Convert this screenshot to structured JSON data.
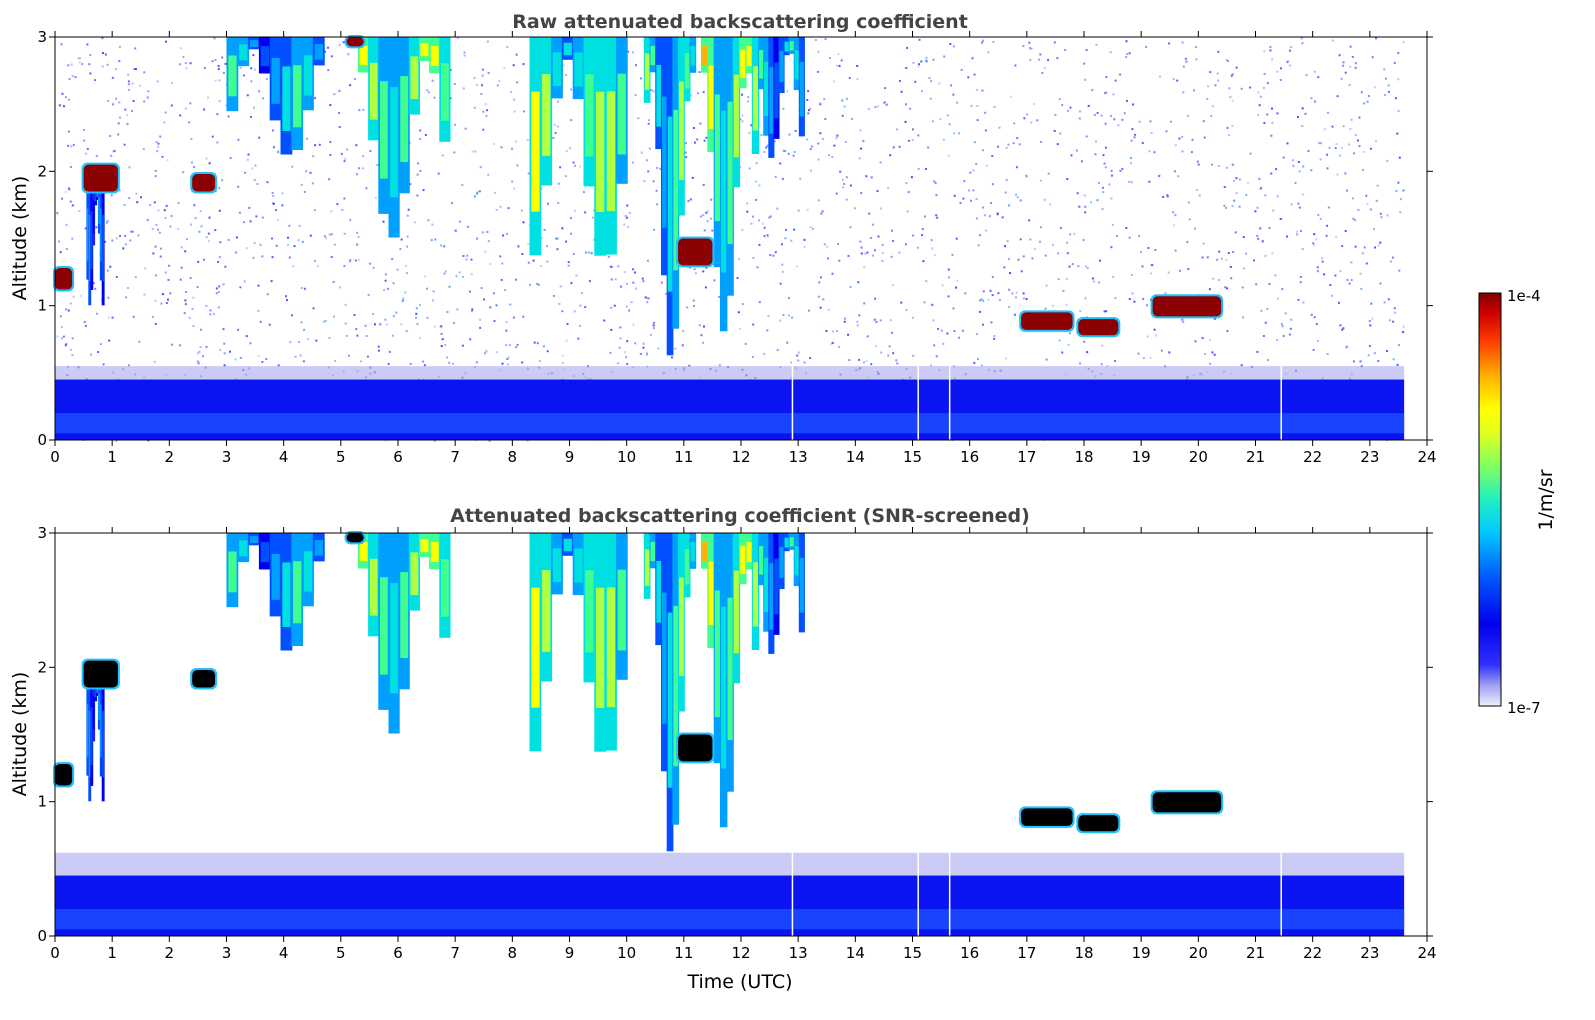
{
  "chart_data": [
    {
      "type": "heatmap",
      "title": "Raw attenuated backscattering coefficient",
      "xlabel": "",
      "ylabel": "Altitude (km)",
      "xlim": [
        0,
        24
      ],
      "ylim": [
        0,
        3
      ],
      "xticks": [
        "0",
        "1",
        "2",
        "3",
        "4",
        "5",
        "6",
        "7",
        "8",
        "9",
        "10",
        "11",
        "12",
        "13",
        "14",
        "15",
        "16",
        "17",
        "18",
        "19",
        "20",
        "21",
        "22",
        "23",
        "24"
      ],
      "yticks": [
        "0",
        "1",
        "2",
        "3"
      ],
      "data_end_hour": 23.6,
      "boundary_layer": {
        "top_km": 0.45,
        "level": 0.18
      },
      "features": [
        {
          "kind": "cirrus_streak",
          "x_start": 3.0,
          "x_end": 4.7,
          "top_km": 3.0,
          "bottom_km": 2.1,
          "level": 0.55
        },
        {
          "kind": "cirrus_streak",
          "x_start": 5.3,
          "x_end": 6.9,
          "top_km": 3.0,
          "bottom_km": 1.5,
          "level": 0.72
        },
        {
          "kind": "cirrus_streak",
          "x_start": 8.3,
          "x_end": 10.0,
          "top_km": 3.0,
          "bottom_km": 1.3,
          "level": 0.68
        },
        {
          "kind": "cirrus_streak",
          "x_start": 10.3,
          "x_end": 11.2,
          "top_km": 3.0,
          "bottom_km": 0.6,
          "level": 0.62
        },
        {
          "kind": "cirrus_streak",
          "x_start": 11.3,
          "x_end": 12.3,
          "top_km": 3.0,
          "bottom_km": 0.8,
          "level": 0.75
        },
        {
          "kind": "cirrus_streak",
          "x_start": 12.3,
          "x_end": 13.1,
          "top_km": 3.0,
          "bottom_km": 2.1,
          "level": 0.55
        },
        {
          "kind": "thin_column",
          "x_start": 0.55,
          "x_end": 0.85,
          "top_km": 1.9,
          "bottom_km": 1.0,
          "level": 0.45
        },
        {
          "kind": "liquid_cloud",
          "x_start": 0.5,
          "x_end": 1.1,
          "top_km": 2.05,
          "bottom_km": 1.85,
          "level": 1.0
        },
        {
          "kind": "liquid_cloud",
          "x_start": 2.4,
          "x_end": 2.8,
          "top_km": 1.98,
          "bottom_km": 1.85,
          "level": 1.0
        },
        {
          "kind": "liquid_cloud",
          "x_start": 0.0,
          "x_end": 0.3,
          "top_km": 1.28,
          "bottom_km": 1.12,
          "level": 1.0
        },
        {
          "kind": "liquid_cloud",
          "x_start": 10.9,
          "x_end": 11.5,
          "top_km": 1.5,
          "bottom_km": 1.3,
          "level": 1.0
        },
        {
          "kind": "liquid_cloud",
          "x_start": 16.9,
          "x_end": 17.8,
          "top_km": 0.95,
          "bottom_km": 0.82,
          "level": 1.0
        },
        {
          "kind": "liquid_cloud",
          "x_start": 17.9,
          "x_end": 18.6,
          "top_km": 0.9,
          "bottom_km": 0.78,
          "level": 1.0
        },
        {
          "kind": "liquid_cloud",
          "x_start": 19.2,
          "x_end": 20.4,
          "top_km": 1.07,
          "bottom_km": 0.92,
          "level": 1.0
        },
        {
          "kind": "liquid_cloud",
          "x_start": 5.1,
          "x_end": 5.4,
          "top_km": 3.0,
          "bottom_km": 2.93,
          "level": 1.0
        }
      ],
      "gaps": [
        12.9,
        15.1,
        15.65,
        21.45
      ]
    },
    {
      "type": "heatmap",
      "title": "Attenuated backscattering coefficient (SNR-screened)",
      "xlabel": "Time (UTC)",
      "ylabel": "Altitude (km)",
      "xlim": [
        0,
        24
      ],
      "ylim": [
        0,
        3
      ],
      "xticks": [
        "0",
        "1",
        "2",
        "3",
        "4",
        "5",
        "6",
        "7",
        "8",
        "9",
        "10",
        "11",
        "12",
        "13",
        "14",
        "15",
        "16",
        "17",
        "18",
        "19",
        "20",
        "21",
        "22",
        "23",
        "24"
      ],
      "yticks": [
        "0",
        "1",
        "2",
        "3"
      ],
      "data_end_hour": 23.6,
      "screened_black_saturation": true
    }
  ],
  "colorbar": {
    "label": "1/m/sr",
    "max_label": "1e-4",
    "min_label": "1e-7",
    "colors": [
      "#e8e8f8",
      "#b0b0f0",
      "#7070f0",
      "#2020ff",
      "#0000ee",
      "#0050ff",
      "#00a0ff",
      "#00e0e0",
      "#40ff90",
      "#b0ff40",
      "#ffff00",
      "#ffb000",
      "#ff5000",
      "#e00000",
      "#8b0000"
    ]
  }
}
